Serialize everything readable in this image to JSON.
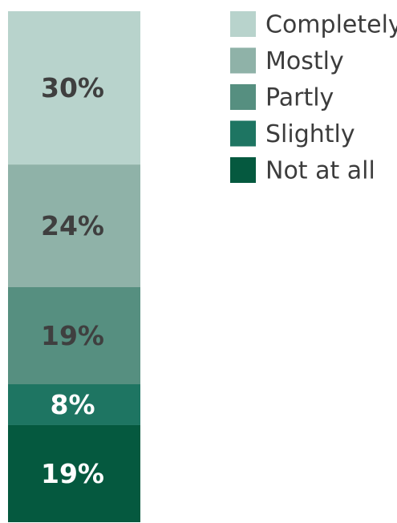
{
  "chart_data": {
    "type": "bar",
    "stacked": true,
    "orientation": "vertical",
    "categories": [
      ""
    ],
    "series": [
      {
        "name": "Completely",
        "values": [
          30
        ],
        "label": "30%",
        "color": "#b8d3cc",
        "label_color": "#3f3f3f"
      },
      {
        "name": "Mostly",
        "values": [
          24
        ],
        "label": "24%",
        "color": "#8fb2a8",
        "label_color": "#3f3f3f"
      },
      {
        "name": "Partly",
        "values": [
          19
        ],
        "label": "19%",
        "color": "#568f80",
        "label_color": "#3f3f3f"
      },
      {
        "name": "Slightly",
        "values": [
          8
        ],
        "label": "8%",
        "color": "#1e7562",
        "label_color": "#ffffff"
      },
      {
        "name": "Not at all",
        "values": [
          19
        ],
        "label": "19%",
        "color": "#05593f",
        "label_color": "#ffffff"
      }
    ],
    "ylim": [
      0,
      100
    ],
    "legend_position": "top-right",
    "title": "",
    "xlabel": "",
    "ylabel": ""
  }
}
